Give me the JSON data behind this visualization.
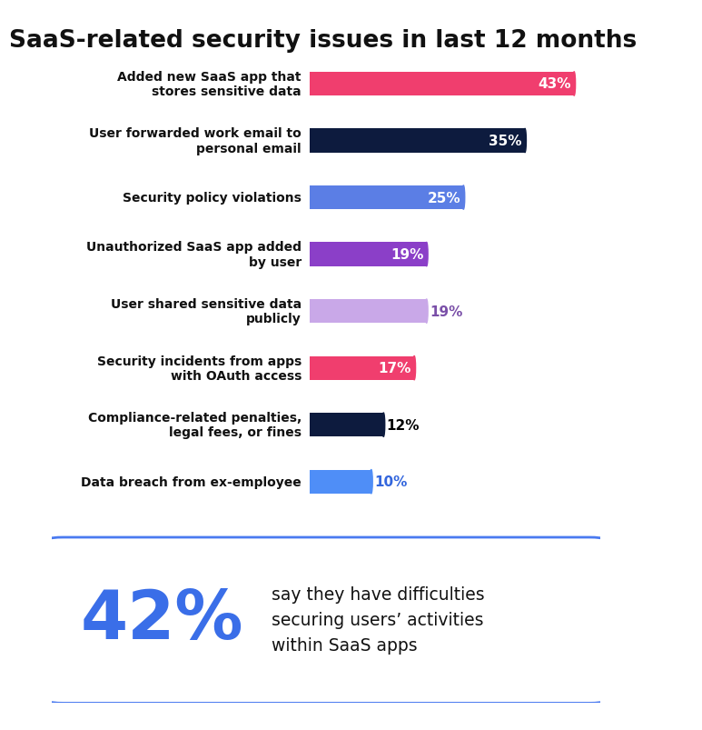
{
  "title": "SaaS-related security issues in last 12 months",
  "categories": [
    "Added new SaaS app that\nstores sensitive data",
    "User forwarded work email to\npersonal email",
    "Security policy violations",
    "Unauthorized SaaS app added\nby user",
    "User shared sensitive data\npublicly",
    "Security incidents from apps\nwith OAuth access",
    "Compliance-related penalties,\nlegal fees, or fines",
    "Data breach from ex-employee"
  ],
  "values": [
    43,
    35,
    25,
    19,
    19,
    17,
    12,
    10
  ],
  "bar_colors": [
    "#f03e6e",
    "#0d1b3e",
    "#5b7ee5",
    "#8b3fc8",
    "#c9a8e8",
    "#f03e6e",
    "#0d1b3e",
    "#4f8ef7"
  ],
  "label_colors": [
    "white",
    "white",
    "white",
    "white",
    "#7a4fa8",
    "white",
    "black",
    "#3366dd"
  ],
  "label_inside": [
    true,
    true,
    true,
    true,
    false,
    true,
    false,
    false
  ],
  "background_color": "#ffffff",
  "right_strip_color": "#e8e8e8",
  "title_fontsize": 19,
  "bar_height": 0.42,
  "xlim": [
    0,
    50
  ],
  "footer_big": "42%",
  "footer_big_color": "#3a6ee8",
  "footer_text": "say they have difficulties\nsecuring users’ activities\nwithin SaaS apps",
  "footer_text_color": "#111111",
  "footer_box_edge_color": "#4a7af0"
}
